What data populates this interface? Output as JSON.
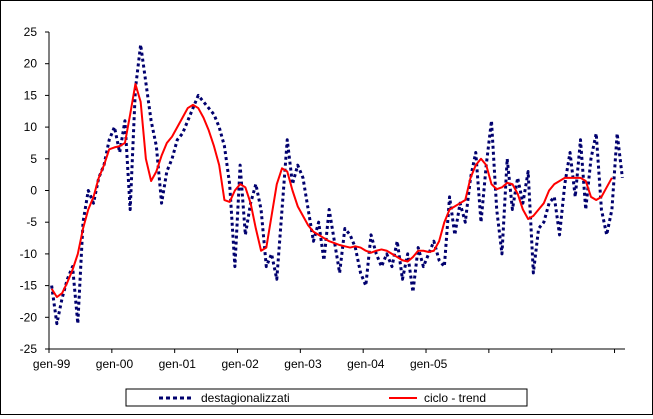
{
  "chart_data": {
    "type": "line",
    "title": "",
    "xlabel": "",
    "ylabel": "",
    "ylim": [
      -25,
      25
    ],
    "yticks": [
      -25,
      -20,
      -15,
      -10,
      -5,
      0,
      5,
      10,
      15,
      20,
      25
    ],
    "x_tick_labels": [
      "gen-99",
      "gen-00",
      "gen-01",
      "gen-02",
      "gen-03",
      "gen-04",
      "gen-05"
    ],
    "x_range_months": [
      "1999-01",
      "2005-12"
    ],
    "grid": false,
    "legend_position": "bottom",
    "series": [
      {
        "name": "destagionalizzati",
        "color": "#00006e",
        "style": "dashed",
        "values": [
          -15,
          -21,
          -17,
          -14,
          -12,
          -21,
          -5,
          0,
          -2,
          2,
          4,
          8,
          10,
          6,
          11,
          -3,
          16,
          23,
          17,
          11,
          7,
          -2,
          3,
          5,
          8,
          9,
          11,
          13,
          15,
          14,
          13,
          12,
          10,
          7,
          1,
          -12,
          4,
          -7,
          -2,
          1,
          -3,
          -12,
          -10,
          -14,
          -3,
          8,
          1,
          4,
          2,
          -3,
          -8,
          -5,
          -11,
          -3,
          -8,
          -13,
          -6,
          -7,
          -9,
          -13,
          -15,
          -7,
          -10,
          -12,
          -10,
          -12,
          -8,
          -14,
          -10,
          -16,
          -9,
          -12,
          -10,
          -8,
          -11,
          -12,
          -1,
          -7,
          -2,
          -5,
          2,
          6,
          -5,
          4,
          11,
          -3,
          -10,
          5,
          -3,
          2,
          -2,
          3,
          -13,
          -6,
          -5,
          -2,
          -1,
          -7,
          1,
          6,
          -1,
          8,
          -3,
          5,
          9,
          -3,
          -7,
          -3,
          9,
          2
        ]
      },
      {
        "name": "ciclo - trend",
        "color": "#ff0000",
        "style": "solid",
        "values": [
          -15.5,
          -16.8,
          -16.2,
          -14.5,
          -12.5,
          -10,
          -6,
          -3,
          -1,
          2,
          4,
          6.5,
          6.8,
          7,
          7.5,
          12,
          16.8,
          14,
          5,
          1.5,
          3,
          5.5,
          7.5,
          8.5,
          10,
          11.5,
          13,
          13.5,
          13,
          11.5,
          9.5,
          7,
          4,
          -1.5,
          -1.8,
          0,
          1,
          0.5,
          -2,
          -6,
          -9.5,
          -9,
          -4,
          1,
          3.5,
          3,
          0,
          -2.5,
          -4,
          -5.5,
          -6.5,
          -7,
          -7.5,
          -8,
          -8.3,
          -8.6,
          -8.8,
          -9,
          -8.8,
          -9,
          -9.5,
          -9.8,
          -9.5,
          -9.3,
          -9.5,
          -10,
          -10.5,
          -11,
          -11.2,
          -10.5,
          -9.5,
          -9.5,
          -9.7,
          -9.5,
          -8,
          -5,
          -3,
          -2.5,
          -2,
          -1.5,
          2,
          4,
          5,
          4,
          1,
          0.2,
          0.5,
          1.2,
          1,
          -0.5,
          -3,
          -4.5,
          -4,
          -3,
          -2,
          0,
          1,
          1.5,
          2,
          2,
          2,
          2,
          1.5,
          -1,
          -1.5,
          -1,
          0.5,
          2
        ]
      }
    ]
  }
}
